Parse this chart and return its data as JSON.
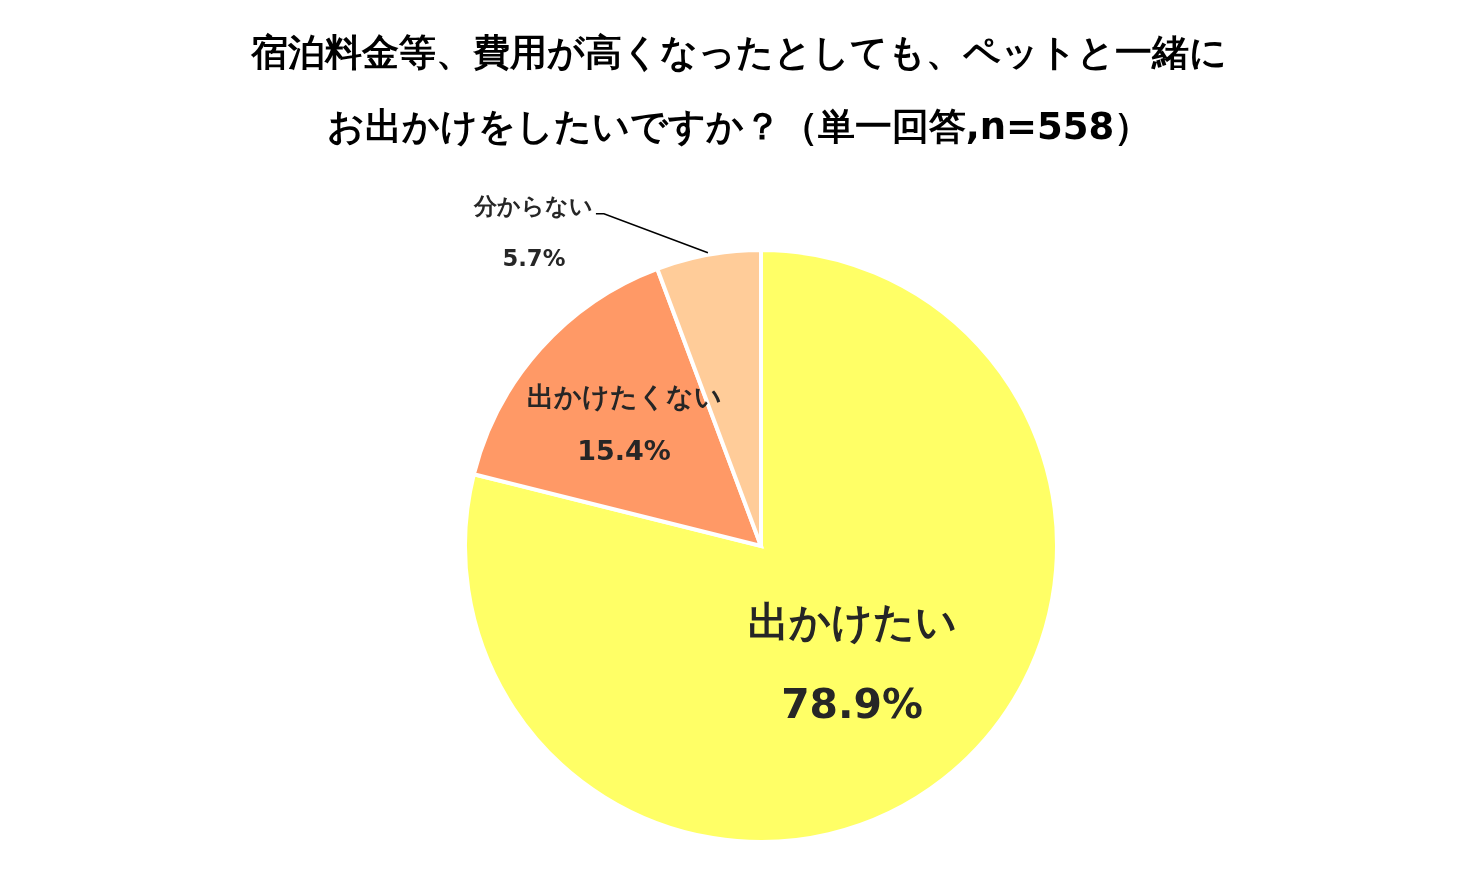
{
  "chart_data": {
    "type": "pie",
    "title": "宿泊料金等、費用が高くなったとしても、ペットと一緒にお出かけをしたいですか？（単一回答,n=558）",
    "categories": [
      "出かけたい",
      "出かけたくない",
      "分からない"
    ],
    "values": [
      78.9,
      15.4,
      5.7
    ],
    "colors": [
      "#ffff66",
      "#ff9966",
      "#ffcc99"
    ],
    "value_labels": [
      "78.9%",
      "15.4%",
      "5.7%"
    ]
  }
}
